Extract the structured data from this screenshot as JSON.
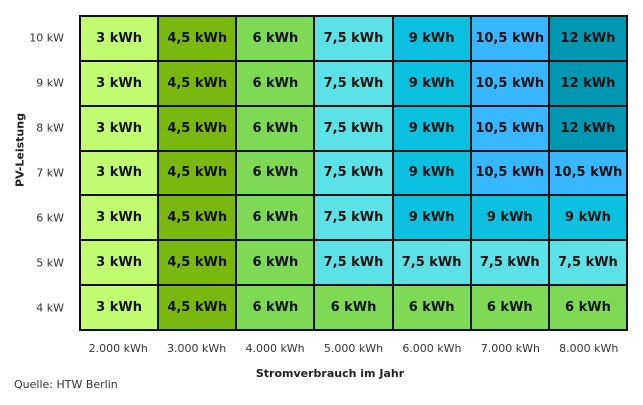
{
  "chart_data": {
    "type": "heatmap",
    "xlabel": "Stromverbrauch im Jahr",
    "ylabel": "PV-Leistung",
    "x_categories": [
      "2.000 kWh",
      "3.000 kWh",
      "4.000 kWh",
      "5.000 kWh",
      "6.000 kWh",
      "7.000 kWh",
      "8.000 kWh"
    ],
    "y_categories": [
      "10 kW",
      "9 kW",
      "8 kW",
      "7 kW",
      "6 kW",
      "5 kW",
      "4 kW"
    ],
    "values": [
      [
        "3 kWh",
        "4,5 kWh",
        "6 kWh",
        "7,5 kWh",
        "9 kWh",
        "10,5 kWh",
        "12 kWh"
      ],
      [
        "3 kWh",
        "4,5 kWh",
        "6 kWh",
        "7,5 kWh",
        "9 kWh",
        "10,5 kWh",
        "12 kWh"
      ],
      [
        "3 kWh",
        "4,5 kWh",
        "6 kWh",
        "7,5 kWh",
        "9 kWh",
        "10,5 kWh",
        "12 kWh"
      ],
      [
        "3 kWh",
        "4,5 kWh",
        "6 kWh",
        "7,5 kWh",
        "9 kWh",
        "10,5 kWh",
        "10,5 kWh"
      ],
      [
        "3 kWh",
        "4,5 kWh",
        "6 kWh",
        "7,5 kWh",
        "9 kWh",
        "9 kWh",
        "9 kWh"
      ],
      [
        "3 kWh",
        "4,5 kWh",
        "6 kWh",
        "7,5 kWh",
        "7,5 kWh",
        "7,5 kWh",
        "7,5 kWh"
      ],
      [
        "3 kWh",
        "4,5 kWh",
        "6 kWh",
        "6 kWh",
        "6 kWh",
        "6 kWh",
        "6 kWh"
      ]
    ],
    "colors": {
      "3 kWh": "#c1fb6f",
      "4,5 kWh": "#78b80f",
      "6 kWh": "#7ed957",
      "7,5 kWh": "#5ce1e6",
      "9 kWh": "#0cc0df",
      "10,5 kWh": "#38b6ff",
      "12 kWh": "#0097b2"
    }
  },
  "source": "Quelle: HTW Berlin"
}
